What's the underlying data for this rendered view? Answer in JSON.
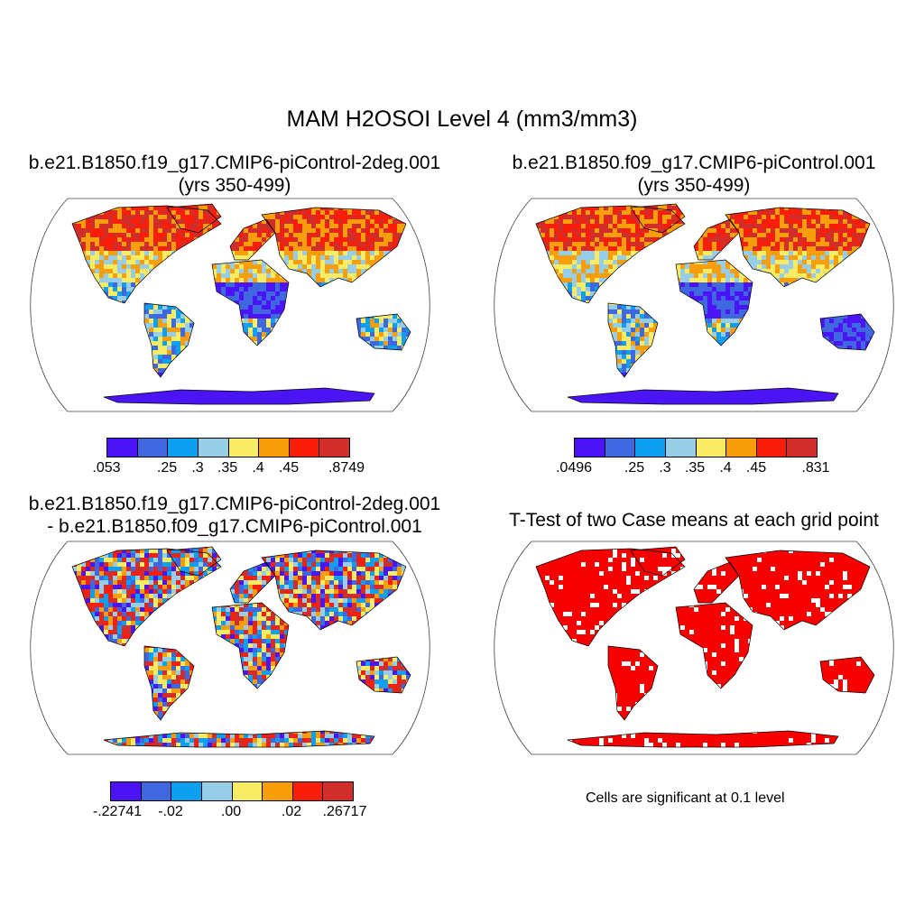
{
  "title": "MAM H2OSOI Level 4 (mm3/mm3)",
  "panels": [
    {
      "line1": "b.e21.B1850.f19_g17.CMIP6-piControl-2deg.001",
      "line2": "(yrs 350-499)",
      "style": "case1"
    },
    {
      "line1": "b.e21.B1850.f09_g17.CMIP6-piControl.001",
      "line2": "(yrs 350-499)",
      "style": "case2"
    },
    {
      "line1": "b.e21.B1850.f19_g17.CMIP6-piControl-2deg.001",
      "line2": "- b.e21.B1850.f09_g17.CMIP6-piControl.001",
      "style": "diff"
    },
    {
      "line1": "T-Test of two Case means at each grid point",
      "line2": "",
      "style": "ttest"
    }
  ],
  "colorbars": [
    {
      "colors": [
        "#4b14f5",
        "#3f67e0",
        "#0f9ff0",
        "#98cde8",
        "#f8eb66",
        "#f89e0a",
        "#f81e0a",
        "#d12d2a"
      ],
      "labels": [
        ".053",
        ".25",
        ".3",
        ".35",
        ".4",
        ".45",
        ".8749"
      ]
    },
    {
      "colors": [
        "#4b14f5",
        "#3f67e0",
        "#0f9ff0",
        "#98cde8",
        "#f8eb66",
        "#f89e0a",
        "#f81e0a",
        "#d12d2a"
      ],
      "labels": [
        ".0496",
        ".25",
        ".3",
        ".35",
        ".4",
        ".45",
        ".831"
      ]
    },
    {
      "colors": [
        "#4b14f5",
        "#3f67e0",
        "#0f9ff0",
        "#98cde8",
        "#f8eb66",
        "#f89e0a",
        "#f81e0a",
        "#d12d2a"
      ],
      "labels": [
        "-.22741",
        "-.02",
        ".00",
        ".02",
        ".26717"
      ]
    }
  ],
  "ttest_note": "Cells are significant at 0.1 level",
  "significance_color": "#f80000"
}
